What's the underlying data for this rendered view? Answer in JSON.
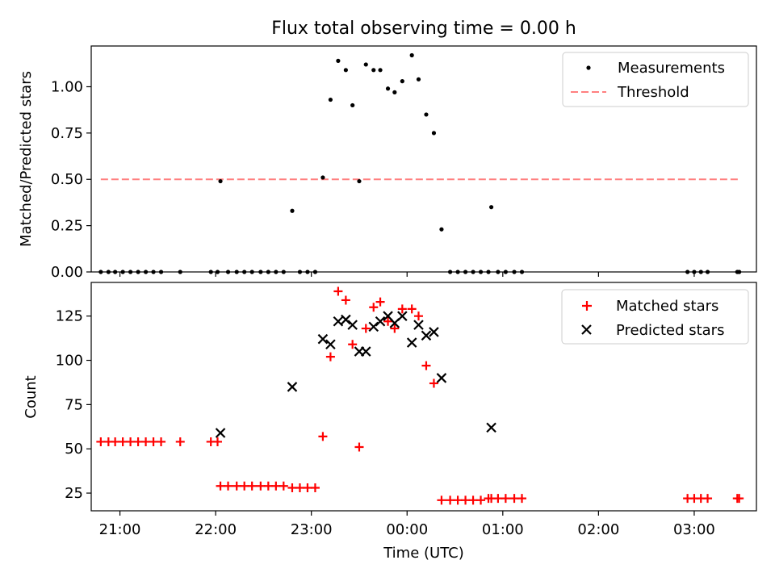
{
  "chart_data": [
    {
      "type": "scatter",
      "title": "Flux total observing time = 0.00 h",
      "ylabel": "Matched/Predicted stars",
      "xlabel": "",
      "xlim_hours": [
        -3.3,
        3.65
      ],
      "ylim": [
        0,
        1.22
      ],
      "yticks": [
        0.0,
        0.25,
        0.5,
        0.75,
        1.0
      ],
      "ytick_labels": [
        "0.00",
        "0.25",
        "0.50",
        "0.75",
        "1.00"
      ],
      "xticks_hours": [
        -3,
        -2,
        -1,
        0,
        1,
        2,
        3
      ],
      "xtick_labels": [
        "",
        "",
        "",
        "",
        "",
        "",
        ""
      ],
      "legend_position": "top-right",
      "grid": false,
      "series": [
        {
          "name": "Measurements",
          "marker": "dot",
          "color": "#000000",
          "points": [
            [
              -3.2,
              0
            ],
            [
              -3.12,
              0
            ],
            [
              -3.05,
              0
            ],
            [
              -2.97,
              0
            ],
            [
              -2.89,
              0
            ],
            [
              -2.81,
              0
            ],
            [
              -2.73,
              0
            ],
            [
              -2.65,
              0
            ],
            [
              -2.57,
              0
            ],
            [
              -2.37,
              0
            ],
            [
              -2.05,
              0
            ],
            [
              -1.98,
              0
            ],
            [
              -1.95,
              0.49
            ],
            [
              -1.87,
              0
            ],
            [
              -1.78,
              0
            ],
            [
              -1.7,
              0
            ],
            [
              -1.62,
              0
            ],
            [
              -1.53,
              0
            ],
            [
              -1.45,
              0
            ],
            [
              -1.37,
              0
            ],
            [
              -1.29,
              0
            ],
            [
              -1.2,
              0.33
            ],
            [
              -1.12,
              0
            ],
            [
              -1.04,
              0
            ],
            [
              -0.96,
              0
            ],
            [
              -0.88,
              0.51
            ],
            [
              -0.8,
              0.93
            ],
            [
              -0.72,
              1.14
            ],
            [
              -0.64,
              1.09
            ],
            [
              -0.57,
              0.9
            ],
            [
              -0.5,
              0.49
            ],
            [
              -0.43,
              1.12
            ],
            [
              -0.35,
              1.09
            ],
            [
              -0.28,
              1.09
            ],
            [
              -0.2,
              0.99
            ],
            [
              -0.13,
              0.97
            ],
            [
              -0.05,
              1.03
            ],
            [
              0.05,
              1.17
            ],
            [
              0.12,
              1.04
            ],
            [
              0.2,
              0.85
            ],
            [
              0.28,
              0.75
            ],
            [
              0.36,
              0.23
            ],
            [
              0.45,
              0
            ],
            [
              0.53,
              0
            ],
            [
              0.61,
              0
            ],
            [
              0.69,
              0
            ],
            [
              0.77,
              0
            ],
            [
              0.85,
              0
            ],
            [
              0.88,
              0.35
            ],
            [
              0.95,
              0
            ],
            [
              1.03,
              0
            ],
            [
              1.12,
              0
            ],
            [
              1.2,
              0
            ],
            [
              2.93,
              0
            ],
            [
              3.0,
              0
            ],
            [
              3.07,
              0
            ],
            [
              3.14,
              0
            ],
            [
              3.45,
              0
            ],
            [
              3.47,
              0
            ]
          ]
        },
        {
          "name": "Threshold",
          "style": "dashed",
          "color": "#ff7f7f",
          "x_range": [
            -3.2,
            3.47
          ],
          "value": 0.5
        }
      ]
    },
    {
      "type": "scatter",
      "title": "",
      "ylabel": "Count",
      "xlabel": "Time (UTC)",
      "xlim_hours": [
        -3.3,
        3.65
      ],
      "ylim": [
        15,
        144
      ],
      "yticks": [
        25,
        50,
        75,
        100,
        125
      ],
      "ytick_labels": [
        "25",
        "50",
        "75",
        "100",
        "125"
      ],
      "xticks_hours": [
        -3,
        -2,
        -1,
        0,
        1,
        2,
        3
      ],
      "xtick_labels": [
        "21:00",
        "22:00",
        "23:00",
        "00:00",
        "01:00",
        "02:00",
        "03:00"
      ],
      "legend_position": "top-right",
      "grid": false,
      "series": [
        {
          "name": "Matched stars",
          "marker": "plus",
          "color": "#ff0000",
          "points": [
            [
              -3.2,
              54
            ],
            [
              -3.12,
              54
            ],
            [
              -3.05,
              54
            ],
            [
              -2.97,
              54
            ],
            [
              -2.89,
              54
            ],
            [
              -2.81,
              54
            ],
            [
              -2.73,
              54
            ],
            [
              -2.65,
              54
            ],
            [
              -2.57,
              54
            ],
            [
              -2.37,
              54
            ],
            [
              -2.05,
              54
            ],
            [
              -1.98,
              54
            ],
            [
              -1.95,
              29
            ],
            [
              -1.87,
              29
            ],
            [
              -1.78,
              29
            ],
            [
              -1.7,
              29
            ],
            [
              -1.62,
              29
            ],
            [
              -1.53,
              29
            ],
            [
              -1.45,
              29
            ],
            [
              -1.37,
              29
            ],
            [
              -1.29,
              29
            ],
            [
              -1.2,
              28
            ],
            [
              -1.12,
              28
            ],
            [
              -1.04,
              28
            ],
            [
              -0.96,
              28
            ],
            [
              -0.88,
              57
            ],
            [
              -0.8,
              102
            ],
            [
              -0.72,
              139
            ],
            [
              -0.64,
              134
            ],
            [
              -0.57,
              109
            ],
            [
              -0.5,
              51
            ],
            [
              -0.43,
              118
            ],
            [
              -0.35,
              130
            ],
            [
              -0.28,
              133
            ],
            [
              -0.2,
              122
            ],
            [
              -0.13,
              118
            ],
            [
              -0.05,
              129
            ],
            [
              0.05,
              129
            ],
            [
              0.12,
              125
            ],
            [
              0.2,
              97
            ],
            [
              0.28,
              87
            ],
            [
              0.36,
              21
            ],
            [
              0.45,
              21
            ],
            [
              0.53,
              21
            ],
            [
              0.61,
              21
            ],
            [
              0.69,
              21
            ],
            [
              0.77,
              21
            ],
            [
              0.85,
              22
            ],
            [
              0.88,
              22
            ],
            [
              0.95,
              22
            ],
            [
              1.03,
              22
            ],
            [
              1.12,
              22
            ],
            [
              1.2,
              22
            ],
            [
              2.93,
              22
            ],
            [
              3.0,
              22
            ],
            [
              3.07,
              22
            ],
            [
              3.14,
              22
            ],
            [
              3.45,
              22
            ],
            [
              3.47,
              22
            ]
          ]
        },
        {
          "name": "Predicted stars",
          "marker": "x",
          "color": "#000000",
          "points": [
            [
              -1.95,
              59
            ],
            [
              -1.2,
              85
            ],
            [
              -0.88,
              112
            ],
            [
              -0.8,
              109
            ],
            [
              -0.72,
              122
            ],
            [
              -0.64,
              123
            ],
            [
              -0.57,
              120
            ],
            [
              -0.5,
              105
            ],
            [
              -0.43,
              105
            ],
            [
              -0.35,
              119
            ],
            [
              -0.28,
              122
            ],
            [
              -0.2,
              125
            ],
            [
              -0.13,
              121
            ],
            [
              -0.05,
              125
            ],
            [
              0.05,
              110
            ],
            [
              0.12,
              120
            ],
            [
              0.2,
              114
            ],
            [
              0.28,
              116
            ],
            [
              0.36,
              90
            ],
            [
              0.88,
              62
            ]
          ]
        }
      ]
    }
  ]
}
